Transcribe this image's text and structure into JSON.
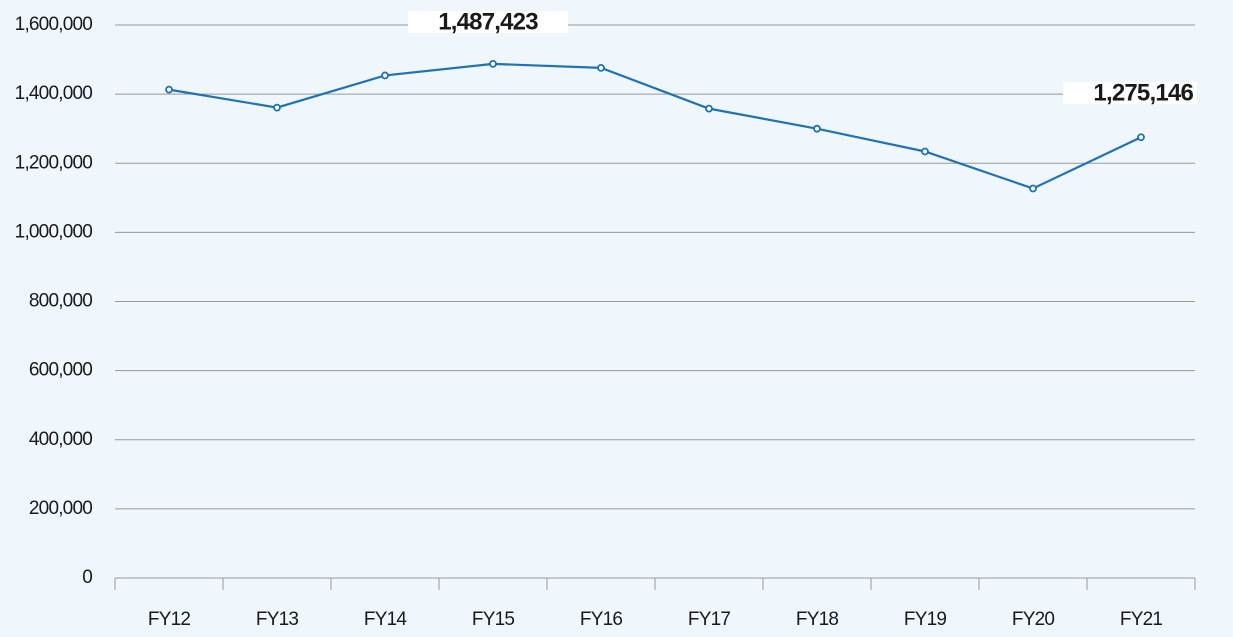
{
  "chart_data": {
    "type": "line",
    "categories": [
      "FY12",
      "FY13",
      "FY14",
      "FY15",
      "FY16",
      "FY17",
      "FY18",
      "FY19",
      "FY20",
      "FY21"
    ],
    "series": [
      {
        "color": "#1f72b5",
        "values": [
          1413000,
          1361000,
          1454000,
          1487423,
          1476000,
          1358000,
          1300000,
          1234000,
          1127000,
          1275146
        ],
        "value_labels": [
          null,
          null,
          null,
          "1,487,423",
          null,
          null,
          null,
          null,
          null,
          "1,275,146"
        ]
      }
    ],
    "ylim": [
      0,
      1600000
    ],
    "yticks": [
      0,
      {
        "value": 200000,
        "label": "200,000"
      },
      {
        "value": 400000,
        "label": "400,000"
      },
      {
        "value": 600000,
        "label": "600,000"
      },
      {
        "value": 800000,
        "label": "800,000"
      },
      {
        "value": 1000000,
        "label": "1,000,000"
      },
      {
        "value": 1200000,
        "label": "1,200,000"
      },
      {
        "value": 1400000,
        "label": "1,400,000"
      },
      {
        "value": 1600000,
        "label": "1,600,000"
      }
    ],
    "grid": true
  }
}
